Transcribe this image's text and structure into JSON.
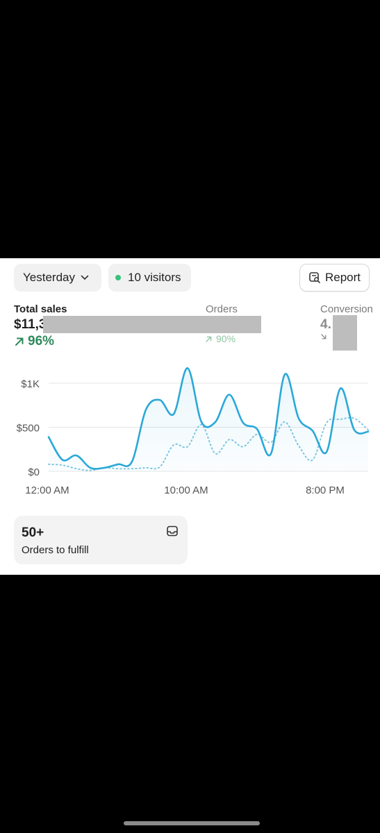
{
  "filters": {
    "date_range": "Yesterday",
    "visitors_label": "10 visitors",
    "visitors_dot_color": "#36c37b"
  },
  "report_button": {
    "label": "Report",
    "icon": "report-search-icon"
  },
  "metrics": {
    "total_sales": {
      "label": "Total sales",
      "value": "$11,3",
      "delta": "96%",
      "direction": "up",
      "color": "#2e8a5a"
    },
    "orders": {
      "label": "Orders",
      "delta": "90%",
      "direction": "up",
      "color": "#8ec4a2"
    },
    "conversion": {
      "label": "Conversion",
      "value": "4.",
      "delta": "",
      "direction": "down"
    }
  },
  "chart_data": {
    "type": "line",
    "x": [
      0,
      1,
      2,
      3,
      4,
      5,
      6,
      7,
      8,
      9,
      10,
      11,
      12,
      13,
      14,
      15,
      16,
      17,
      18,
      19,
      20,
      21,
      22,
      23
    ],
    "x_tick_labels": [
      "12:00 AM",
      "10:00 AM",
      "8:00 PM"
    ],
    "x_tick_positions": [
      0,
      10,
      20
    ],
    "y_tick_labels": [
      "$0",
      "$500",
      "$1K"
    ],
    "y_tick_values": [
      0,
      500,
      1000
    ],
    "ylim": [
      0,
      1000
    ],
    "grid": true,
    "series": [
      {
        "style": "solid",
        "color": "#2aa8d8",
        "values": [
          390,
          130,
          180,
          40,
          40,
          80,
          110,
          700,
          810,
          650,
          1170,
          560,
          560,
          870,
          550,
          480,
          200,
          1100,
          600,
          460,
          220,
          940,
          470,
          450
        ]
      },
      {
        "style": "dotted",
        "color": "#7fc7e0",
        "values": [
          80,
          70,
          30,
          10,
          40,
          30,
          30,
          40,
          50,
          300,
          280,
          530,
          200,
          360,
          280,
          420,
          330,
          560,
          290,
          130,
          550,
          590,
          600,
          470
        ]
      }
    ]
  },
  "orders_card": {
    "count": "50+",
    "label": "Orders to fulfill",
    "icon": "inbox-icon"
  }
}
